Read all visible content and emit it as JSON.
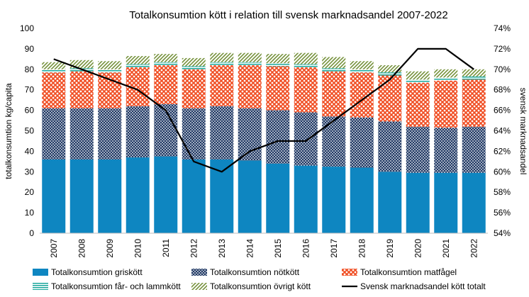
{
  "chart_data": {
    "type": "bar",
    "title": "Totalkonsumtion kött i relation till svensk marknadsandel 2007-2022",
    "ylabel": "totalkonsumtion kg/capita",
    "y2label": "svensk marknadsandel",
    "ylim": [
      0,
      100
    ],
    "yticks": [
      "0",
      "10",
      "20",
      "30",
      "40",
      "50",
      "60",
      "70",
      "80",
      "90",
      "100"
    ],
    "y2lim": [
      54,
      74
    ],
    "y2ticks": [
      "54%",
      "56%",
      "58%",
      "60%",
      "62%",
      "64%",
      "66%",
      "68%",
      "70%",
      "72%",
      "74%"
    ],
    "categories": [
      "2007",
      "2008",
      "2009",
      "2010",
      "2011",
      "2012",
      "2013",
      "2014",
      "2015",
      "2016",
      "2017",
      "2018",
      "2019",
      "2020",
      "2021",
      "2022"
    ],
    "stacked": true,
    "series": [
      {
        "name": "Totalkonsumtion griskött",
        "color": "#0e86c1",
        "values": [
          36,
          36,
          36,
          37,
          37.5,
          36,
          36,
          35.5,
          34,
          33,
          32.5,
          32,
          30,
          29.5,
          29.5,
          29.5
        ]
      },
      {
        "name": "Totalkonsumtion nötkött",
        "color": "#1f3864",
        "values": [
          25,
          25,
          25,
          25,
          25.5,
          25,
          26,
          25.5,
          26,
          26,
          24.5,
          24.5,
          24.5,
          22.5,
          22,
          22.5
        ]
      },
      {
        "name": "Totalkonsumtion matfågel",
        "color": "#f04e23",
        "values": [
          17.5,
          18,
          17.5,
          19,
          19,
          19,
          20,
          21,
          21.5,
          22,
          22,
          22,
          22.5,
          21.5,
          23,
          23
        ]
      },
      {
        "name": "Totalkonsumtion får- och lammkött",
        "color": "#1aa79b",
        "values": [
          1.5,
          1.5,
          1.5,
          1.5,
          1.5,
          1.5,
          1.5,
          1.5,
          1.5,
          1.5,
          1.5,
          1.5,
          1.5,
          1.5,
          1.5,
          1.5
        ]
      },
      {
        "name": "Totalkonsumtion övrigt kött",
        "color": "#76923c",
        "values": [
          3.5,
          4,
          4,
          4,
          4,
          4,
          4.5,
          4.5,
          4.5,
          5.5,
          5.5,
          4,
          3.5,
          4,
          4,
          3.5
        ]
      }
    ],
    "line": {
      "name": "Svensk marknadsandel kött totalt",
      "axis": "right",
      "color": "#000000",
      "values": [
        71,
        70,
        69,
        68,
        66,
        61,
        60,
        62,
        63,
        63,
        65,
        67,
        69,
        72,
        72,
        70
      ]
    },
    "grid": false,
    "legend": "bottom"
  }
}
